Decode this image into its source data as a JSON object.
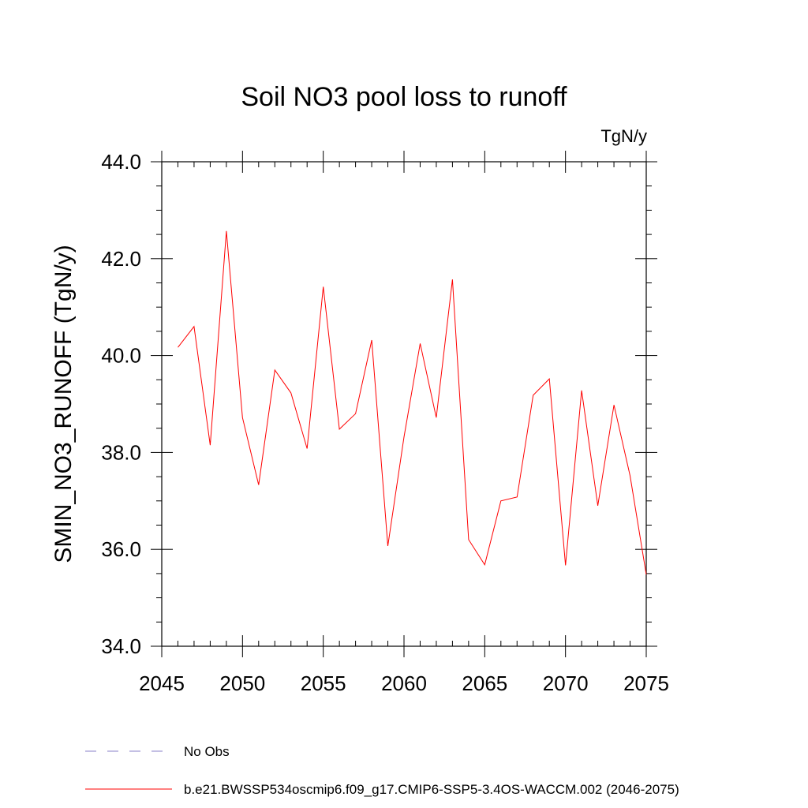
{
  "chart_data": {
    "type": "line",
    "title": "Soil NO3 pool loss to runoff",
    "units_label": "TgN/y",
    "ylabel": "SMIN_NO3_RUNOFF  (TgN/y)",
    "xlabel": "",
    "xlim": [
      2045,
      2075
    ],
    "ylim": [
      34.0,
      44.0
    ],
    "x_ticks": [
      2045,
      2050,
      2055,
      2060,
      2065,
      2070,
      2075
    ],
    "x_tick_labels": [
      "2045",
      "2050",
      "2055",
      "2060",
      "2065",
      "2070",
      "2075"
    ],
    "y_ticks": [
      34.0,
      36.0,
      38.0,
      40.0,
      42.0,
      44.0
    ],
    "y_tick_labels": [
      "34.0",
      "36.0",
      "38.0",
      "40.0",
      "42.0",
      "44.0"
    ],
    "grid": false,
    "legend_placement": "bottom-left, below plot",
    "series": [
      {
        "name": "b.e21.BWSSP534oscmip6.f09_g17.CMIP6-SSP5-3.4OS-WACCM.002 (2046-2075)",
        "color": "#ff0000",
        "style": "solid",
        "x": [
          2046,
          2047,
          2048,
          2049,
          2050,
          2051,
          2052,
          2053,
          2054,
          2055,
          2056,
          2057,
          2058,
          2059,
          2060,
          2061,
          2062,
          2063,
          2064,
          2065,
          2066,
          2067,
          2068,
          2069,
          2070,
          2071,
          2072,
          2073,
          2074,
          2075
        ],
        "values": [
          40.17,
          40.6,
          38.15,
          42.57,
          38.72,
          37.33,
          39.7,
          39.23,
          38.08,
          41.42,
          38.48,
          38.8,
          40.32,
          36.07,
          38.32,
          40.25,
          38.72,
          41.57,
          36.2,
          35.68,
          37.0,
          37.08,
          39.18,
          39.52,
          35.67,
          39.28,
          36.9,
          38.98,
          37.52,
          35.48
        ]
      }
    ],
    "legend": [
      {
        "label": "No Obs",
        "color": "#8a80c8",
        "style": "dashed"
      },
      {
        "label": "b.e21.BWSSP534oscmip6.f09_g17.CMIP6-SSP5-3.4OS-WACCM.002 (2046-2075)",
        "color": "#ff0000",
        "style": "solid"
      }
    ]
  }
}
